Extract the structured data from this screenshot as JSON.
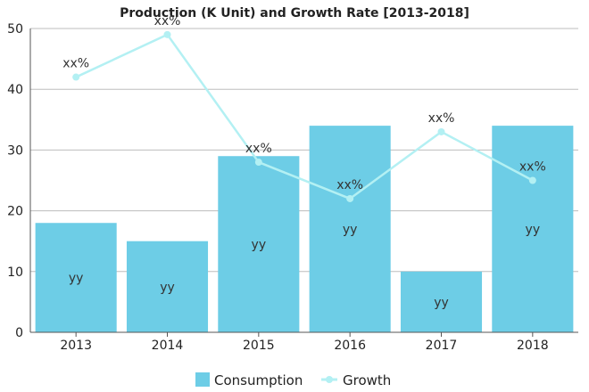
{
  "chart_data": {
    "type": "bar",
    "title": "Production (K Unit) and Growth Rate [2013-2018]",
    "categories": [
      "2013",
      "2014",
      "2015",
      "2016",
      "2017",
      "2018"
    ],
    "ylim": [
      0,
      50
    ],
    "yticks": [
      0,
      10,
      20,
      30,
      40,
      50
    ],
    "grid": true,
    "legend_position": "bottom-center",
    "series": [
      {
        "name": "Consumption",
        "type": "bar",
        "color": "#6dcde6",
        "values": [
          18,
          15,
          29,
          34,
          10,
          34
        ],
        "data_labels": [
          "yy",
          "yy",
          "yy",
          "yy",
          "yy",
          "yy"
        ]
      },
      {
        "name": "Growth",
        "type": "line",
        "color": "#b3f0f3",
        "values": [
          42,
          49,
          28,
          22,
          33,
          25
        ],
        "data_labels": [
          "xx%",
          "xx%",
          "xx%",
          "xx%",
          "xx%",
          "xx%"
        ]
      }
    ]
  }
}
